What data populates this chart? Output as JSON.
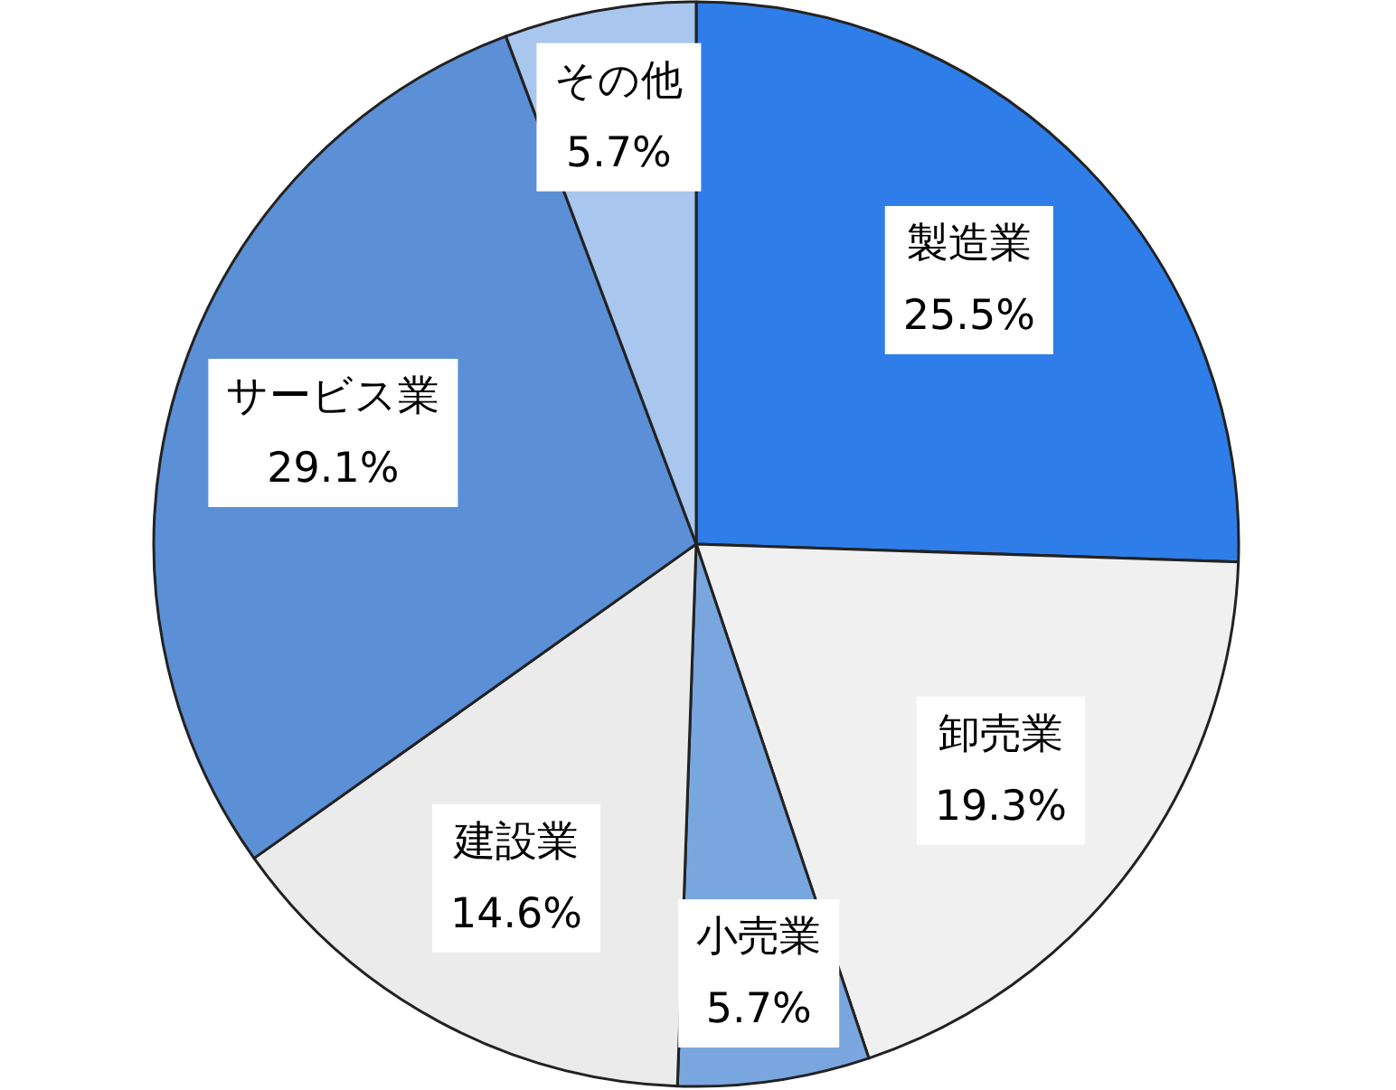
{
  "chart_data": {
    "type": "pie",
    "categories": [
      "製造業",
      "卸売業",
      "小売業",
      "建設業",
      "サービス業",
      "その他"
    ],
    "values": [
      25.5,
      19.3,
      5.7,
      14.6,
      29.1,
      5.7
    ],
    "value_labels": [
      "25.5%",
      "19.3%",
      "5.7%",
      "14.6%",
      "29.1%",
      "5.7%"
    ],
    "colors": [
      "#2f7de8",
      "#f0f0f0",
      "#7aa6e0",
      "#ebebeb",
      "#5b8fd6",
      "#a9c6ee"
    ]
  }
}
